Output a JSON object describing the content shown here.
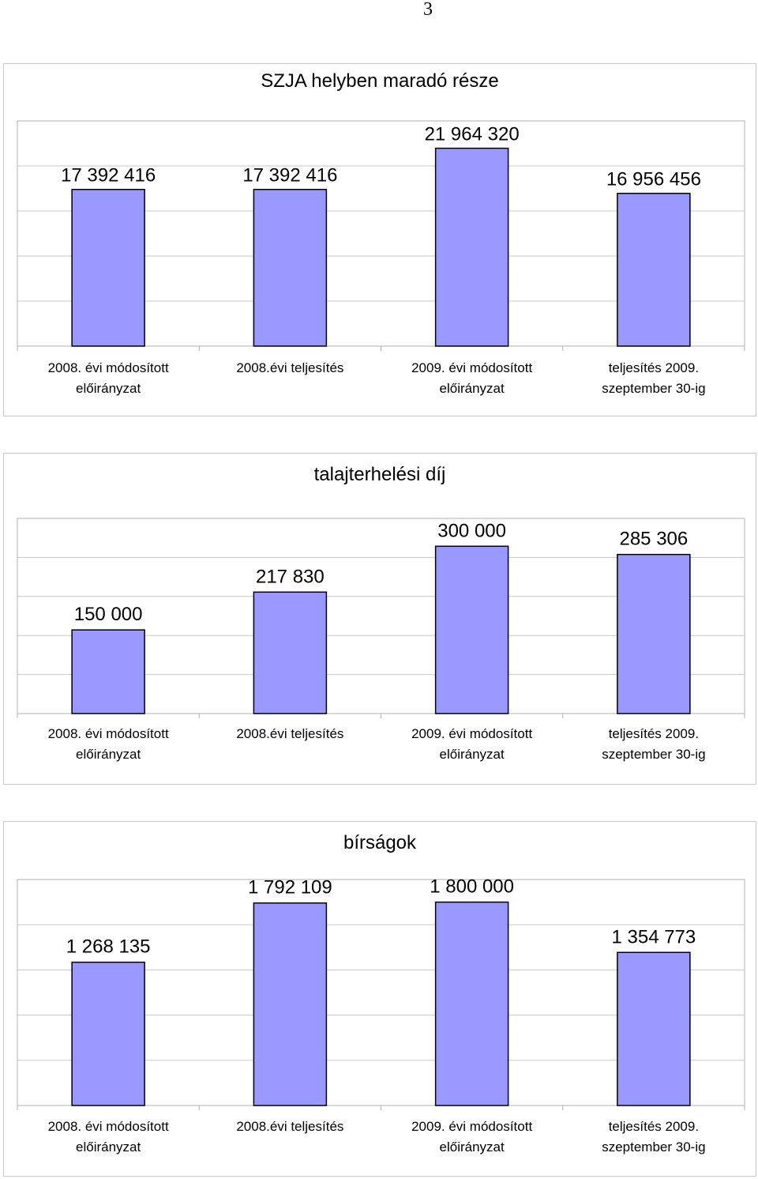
{
  "page_number": "3",
  "chart_data": [
    {
      "type": "bar",
      "title": "SZJA helyben maradó része",
      "categories": [
        [
          "2008. évi módosított",
          "előirányzat"
        ],
        [
          "2008.évi teljesítés"
        ],
        [
          "2009. évi módosított",
          "előirányzat"
        ],
        [
          "teljesítés 2009.",
          "szeptember 30-ig"
        ]
      ],
      "values": [
        17392416,
        17392416,
        21964320,
        16956456
      ],
      "value_labels": [
        "17 392 416",
        "17 392 416",
        "21 964 320",
        "16 956 456"
      ],
      "ylim": [
        0,
        25000000
      ],
      "grid": true,
      "colors": {
        "bar": "#9999ff"
      }
    },
    {
      "type": "bar",
      "title": "talajterhelési díj",
      "categories": [
        [
          "2008. évi módosított",
          "előirányzat"
        ],
        [
          "2008.évi teljesítés"
        ],
        [
          "2009. évi módosított",
          "előirányzat"
        ],
        [
          "teljesítés 2009.",
          "szeptember 30-ig"
        ]
      ],
      "values": [
        150000,
        217830,
        300000,
        285306
      ],
      "value_labels": [
        "150 000",
        "217 830",
        "300 000",
        "285 306"
      ],
      "ylim": [
        0,
        350000
      ],
      "grid": true,
      "colors": {
        "bar": "#9999ff"
      }
    },
    {
      "type": "bar",
      "title": "bírságok",
      "categories": [
        [
          "2008. évi módosított",
          "előirányzat"
        ],
        [
          "2008.évi teljesítés"
        ],
        [
          "2009. évi módosított",
          "előirányzat"
        ],
        [
          "teljesítés 2009.",
          "szeptember 30-ig"
        ]
      ],
      "values": [
        1268135,
        1792109,
        1800000,
        1354773
      ],
      "value_labels": [
        "1 268 135",
        "1 792 109",
        "1 800 000",
        "1 354 773"
      ],
      "ylim": [
        0,
        2000000
      ],
      "grid": true,
      "colors": {
        "bar": "#9999ff"
      }
    }
  ]
}
